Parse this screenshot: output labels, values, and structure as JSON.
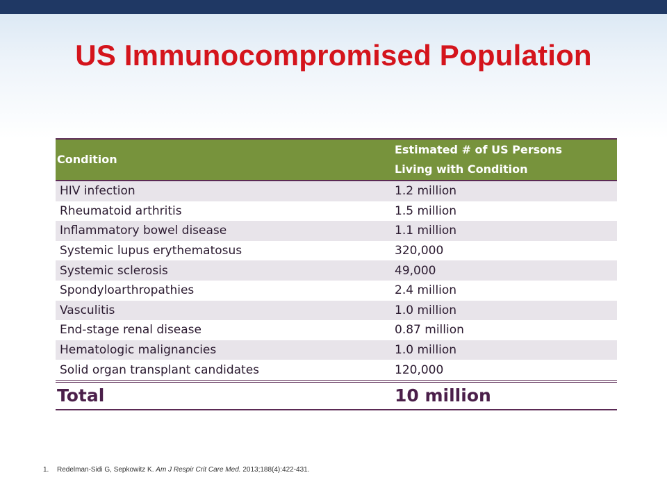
{
  "title": "US Immunocompromised Population",
  "table": {
    "headers": {
      "condition": "Condition",
      "estimate_line1": "Estimated # of US Persons",
      "estimate_line2": "Living with Condition"
    },
    "rows": [
      {
        "condition": "HIV infection",
        "estimate": "1.2 million"
      },
      {
        "condition": "Rheumatoid arthritis",
        "estimate": "1.5 million"
      },
      {
        "condition": "Inflammatory bowel disease",
        "estimate": "1.1 million"
      },
      {
        "condition": "Systemic lupus erythematosus",
        "estimate": "320,000"
      },
      {
        "condition": "Systemic sclerosis",
        "estimate": "49,000"
      },
      {
        "condition": "Spondyloarthropathies",
        "estimate": "2.4 million"
      },
      {
        "condition": "Vasculitis",
        "estimate": "1.0 million"
      },
      {
        "condition": "End-stage renal disease",
        "estimate": "0.87 million"
      },
      {
        "condition": "Hematologic malignancies",
        "estimate": "1.0 million"
      },
      {
        "condition": "Solid organ transplant candidates",
        "estimate": "120,000"
      }
    ],
    "total": {
      "label": "Total",
      "value": "10 million"
    }
  },
  "footnote": {
    "number": "1.",
    "authors": "Redelman-Sidi G, Sepkowitz K.",
    "journal": "Am J Respir Crit Care Med.",
    "citation": "2013;188(4):422-431."
  },
  "colors": {
    "top_bar": "#1f3864",
    "title": "#d4141c",
    "header_bg": "#77933c",
    "row_shade": "#e8e4ea",
    "rule": "#5b2a55"
  }
}
